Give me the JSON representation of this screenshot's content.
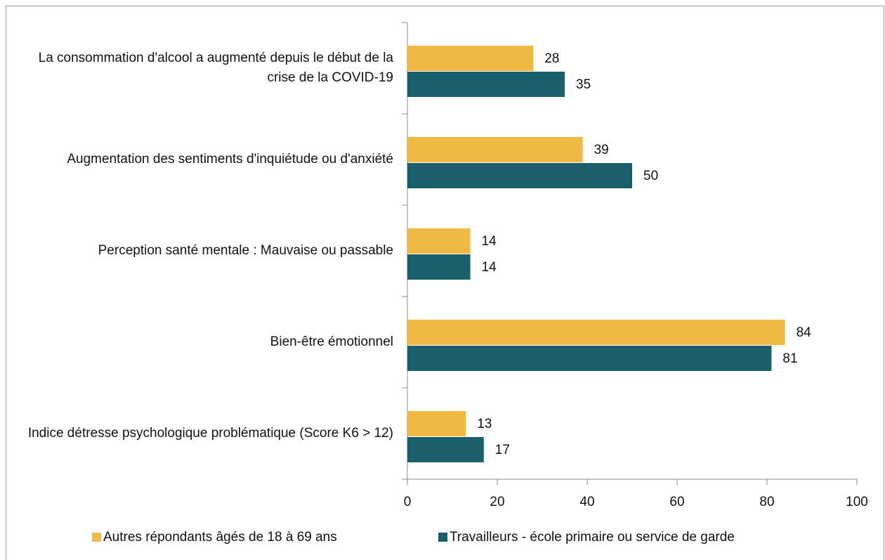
{
  "chart_data": {
    "type": "bar",
    "orientation": "horizontal",
    "categories": [
      "La consommation d'alcool a augmenté depuis le début de la crise de la COVID-19",
      "Augmentation des sentiments d'inquiétude ou d'anxiété",
      "Perception santé mentale : Mauvaise ou passable",
      "Bien-être émotionnel",
      "Indice détresse psychologique problématique (Score K6 > 12)"
    ],
    "series": [
      {
        "name": "Autres répondants âgés de 18 à 69 ans",
        "color": "#f0b944",
        "values": [
          28,
          39,
          14,
          84,
          13
        ]
      },
      {
        "name": "Travailleurs - école primaire ou service de garde",
        "color": "#1b5f6d",
        "values": [
          35,
          50,
          14,
          81,
          17
        ]
      }
    ],
    "xlim": [
      0,
      100
    ],
    "xticks": [
      0,
      20,
      40,
      60,
      80,
      100
    ],
    "legend": "bottom"
  }
}
